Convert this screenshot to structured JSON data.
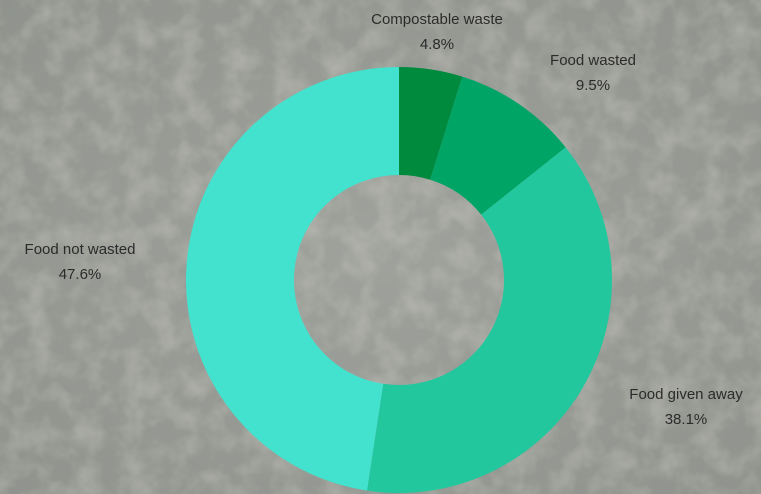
{
  "chart_data": {
    "type": "donut",
    "categories": [
      "Compostable waste",
      "Food wasted",
      "Food given away",
      "Food not wasted"
    ],
    "values": [
      4.8,
      9.5,
      38.1,
      47.6
    ],
    "value_labels": [
      "4.8%",
      "9.5%",
      "38.1%",
      "47.6%"
    ],
    "colors": [
      "#008a3e",
      "#00a565",
      "#22c79d",
      "#43e2cf"
    ]
  }
}
